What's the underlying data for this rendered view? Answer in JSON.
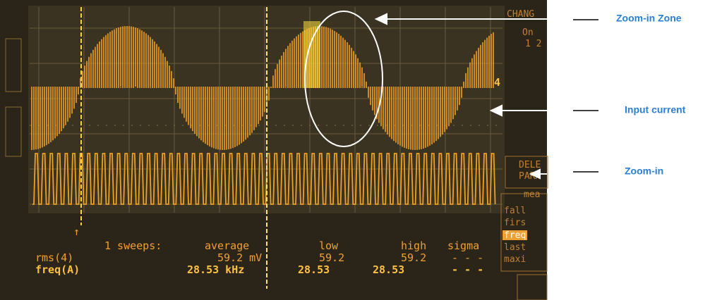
{
  "annotations": [
    {
      "label": "Zoom-in Zone"
    },
    {
      "label": "Input current"
    },
    {
      "label": "Zoom-in"
    }
  ],
  "scope": {
    "channel_marker": "4",
    "readout": {
      "header": [
        "1 sweeps:",
        "average",
        "low",
        "high",
        "sigma"
      ],
      "rows": [
        [
          "rms(4)",
          "59.2 mV",
          "59.2",
          "59.2",
          "- - -"
        ],
        [
          "freq(A)",
          "28.53 kHz",
          "28.53",
          "28.53",
          "- - -"
        ]
      ]
    },
    "side_menu": {
      "top": [
        "CHANG",
        "On",
        "1 2"
      ],
      "middle": [
        "DELE",
        "PARA"
      ],
      "measure_title": "mea",
      "measure_items": [
        "fall",
        "firs",
        "freq",
        "last",
        "maxi"
      ]
    }
  }
}
